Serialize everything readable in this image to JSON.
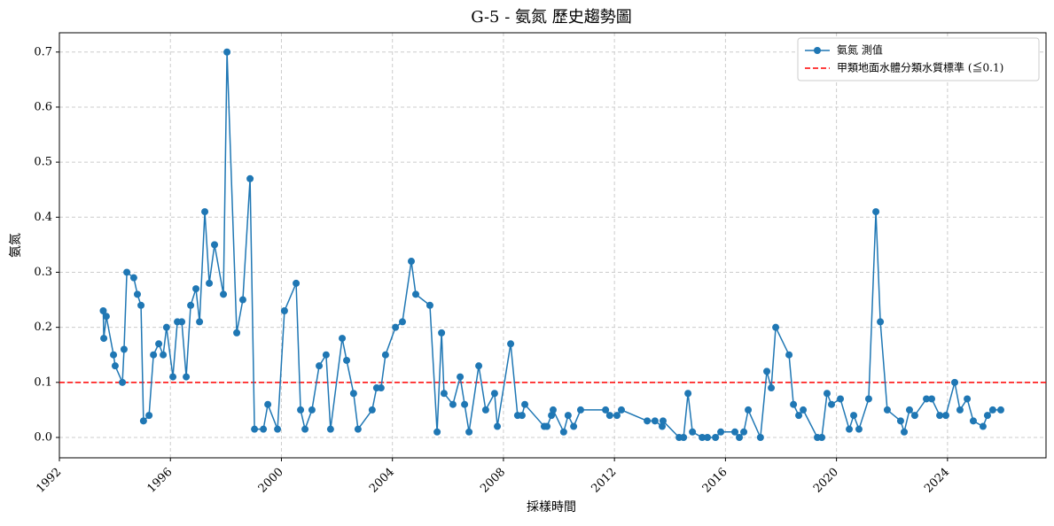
{
  "chart_data": {
    "type": "line",
    "title": "G-5 - 氨氮 歷史趨勢圖",
    "xlabel": "採樣時間",
    "ylabel": "氨氮",
    "x": [
      1993.58,
      1993.6,
      1993.69,
      1993.95,
      1994.01,
      1994.27,
      1994.33,
      1994.43,
      1994.68,
      1994.81,
      1994.94,
      1995.03,
      1995.23,
      1995.39,
      1995.58,
      1995.74,
      1995.86,
      1996.09,
      1996.25,
      1996.41,
      1996.57,
      1996.73,
      1996.92,
      1997.05,
      1997.24,
      1997.4,
      1997.59,
      1997.91,
      1998.04,
      1998.39,
      1998.61,
      1998.87,
      1999.03,
      1999.35,
      1999.51,
      1999.86,
      2000.11,
      2000.53,
      2000.69,
      2000.85,
      2001.1,
      2001.36,
      2001.61,
      2001.77,
      2002.19,
      2002.35,
      2002.6,
      2002.76,
      2003.27,
      2003.43,
      2003.59,
      2003.75,
      2004.11,
      2004.36,
      2004.68,
      2004.84,
      2005.35,
      2005.61,
      2005.77,
      2005.86,
      2006.18,
      2006.44,
      2006.6,
      2006.76,
      2007.11,
      2007.36,
      2007.68,
      2007.78,
      2008.26,
      2008.51,
      2008.67,
      2008.77,
      2009.47,
      2009.57,
      2009.73,
      2009.79,
      2010.17,
      2010.33,
      2010.53,
      2010.78,
      2011.68,
      2011.83,
      2012.09,
      2012.25,
      2013.18,
      2013.46,
      2013.72,
      2013.75,
      2014.33,
      2014.49,
      2014.65,
      2014.81,
      2015.16,
      2015.35,
      2015.64,
      2015.83,
      2016.34,
      2016.5,
      2016.66,
      2016.82,
      2017.26,
      2017.49,
      2017.65,
      2017.81,
      2018.29,
      2018.45,
      2018.64,
      2018.8,
      2019.31,
      2019.47,
      2019.66,
      2019.82,
      2020.14,
      2020.46,
      2020.62,
      2020.81,
      2021.16,
      2021.42,
      2021.58,
      2021.83,
      2022.31,
      2022.44,
      2022.63,
      2022.82,
      2023.24,
      2023.43,
      2023.72,
      2023.94,
      2024.26,
      2024.45,
      2024.71,
      2024.93,
      2025.28,
      2025.44,
      2025.63,
      2025.92
    ],
    "series": [
      {
        "name": "氨氮 測值",
        "color": "#1f77b4",
        "values": [
          0.23,
          0.18,
          0.22,
          0.15,
          0.13,
          0.1,
          0.16,
          0.3,
          0.29,
          0.26,
          0.24,
          0.03,
          0.04,
          0.15,
          0.17,
          0.15,
          0.2,
          0.11,
          0.21,
          0.21,
          0.11,
          0.24,
          0.27,
          0.21,
          0.41,
          0.28,
          0.35,
          0.26,
          0.7,
          0.19,
          0.25,
          0.47,
          0.015,
          0.015,
          0.06,
          0.015,
          0.23,
          0.28,
          0.05,
          0.015,
          0.05,
          0.13,
          0.15,
          0.015,
          0.18,
          0.14,
          0.08,
          0.015,
          0.05,
          0.09,
          0.09,
          0.15,
          0.2,
          0.21,
          0.32,
          0.26,
          0.24,
          0.01,
          0.19,
          0.08,
          0.06,
          0.11,
          0.06,
          0.01,
          0.13,
          0.05,
          0.08,
          0.02,
          0.17,
          0.04,
          0.04,
          0.06,
          0.02,
          0.02,
          0.04,
          0.05,
          0.01,
          0.04,
          0.02,
          0.05,
          0.05,
          0.04,
          0.04,
          0.05,
          0.03,
          0.03,
          0.02,
          0.03,
          0.0,
          0.0,
          0.08,
          0.01,
          0.0,
          0.0,
          0.0,
          0.01,
          0.01,
          0.0,
          0.01,
          0.05,
          0.0,
          0.12,
          0.09,
          0.2,
          0.15,
          0.06,
          0.04,
          0.05,
          0.0,
          0.0,
          0.08,
          0.06,
          0.07,
          0.015,
          0.04,
          0.015,
          0.07,
          0.41,
          0.21,
          0.05,
          0.03,
          0.01,
          0.05,
          0.04,
          0.07,
          0.07,
          0.04,
          0.04,
          0.1,
          0.05,
          0.07,
          0.03,
          0.02,
          0.04,
          0.05,
          0.05
        ]
      }
    ],
    "reference_line": {
      "name": "甲類地面水體分類水質標準 (≦0.1)",
      "color": "#ff0000",
      "value": 0.1
    },
    "xlim": [
      1992,
      2027.55
    ],
    "xticks": [
      1992,
      1996,
      2000,
      2004,
      2008,
      2012,
      2016,
      2020,
      2024
    ],
    "ylim": [
      -0.037,
      0.735
    ],
    "yticks": [
      {
        "value": 0,
        "label": "0.0"
      },
      0.1,
      0.2,
      0.3,
      0.4,
      0.5,
      0.6,
      0.7
    ],
    "grid": true,
    "legend": "upper right"
  }
}
